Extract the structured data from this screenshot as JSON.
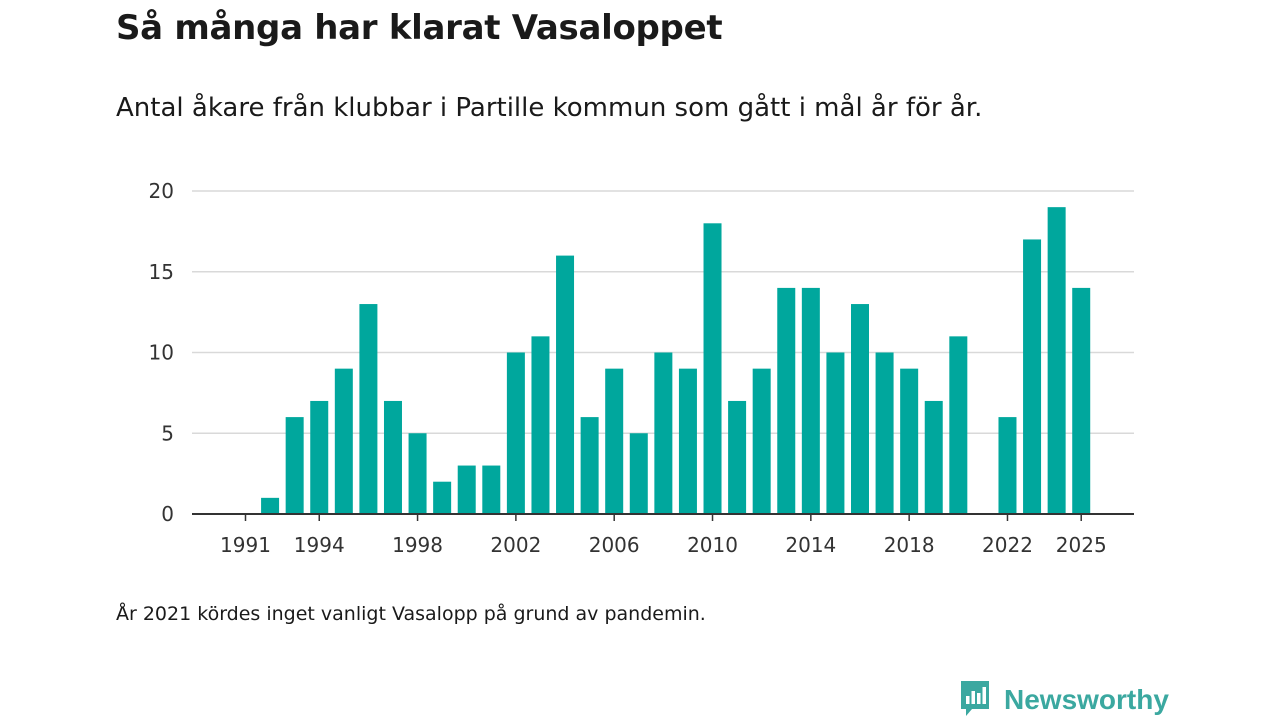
{
  "title": "Så många har klarat Vasaloppet",
  "subtitle": "Antal åkare från klubbar i Partille kommun som gått i mål år för år.",
  "note": "År 2021 kördes inget vanligt Vasalopp på grund av pandemin.",
  "brand": {
    "name": "Newsworthy",
    "color": "#3ba8a0",
    "icon": "newsworthy-logo-icon"
  },
  "colors": {
    "bar": "#00a79d",
    "grid": "#d9d9d9",
    "axis": "#333333"
  },
  "chart_data": {
    "type": "bar",
    "title": "Så många har klarat Vasaloppet",
    "xlabel": "",
    "ylabel": "",
    "ylim": [
      0,
      20
    ],
    "yticks": [
      0,
      5,
      10,
      15,
      20
    ],
    "xticks": [
      1991,
      1994,
      1998,
      2002,
      2006,
      2010,
      2014,
      2018,
      2022,
      2025
    ],
    "categories": [
      1991,
      1992,
      1993,
      1994,
      1995,
      1996,
      1997,
      1998,
      1999,
      2000,
      2001,
      2002,
      2003,
      2004,
      2005,
      2006,
      2007,
      2008,
      2009,
      2010,
      2011,
      2012,
      2013,
      2014,
      2015,
      2016,
      2017,
      2018,
      2019,
      2020,
      2021,
      2022,
      2023,
      2024,
      2025
    ],
    "values": [
      0,
      1,
      6,
      7,
      9,
      13,
      7,
      5,
      2,
      3,
      3,
      10,
      11,
      16,
      6,
      9,
      5,
      10,
      9,
      18,
      7,
      9,
      14,
      14,
      10,
      13,
      10,
      9,
      7,
      11,
      null,
      6,
      17,
      19,
      14
    ],
    "grid": true
  }
}
